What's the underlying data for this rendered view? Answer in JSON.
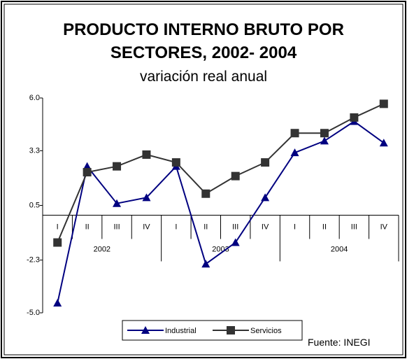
{
  "chart_data": {
    "type": "line",
    "title": "PRODUCTO INTERNO BRUTO POR SECTORES, 2002- 2004",
    "subtitle": "variación real anual",
    "source": "Fuente: INEGI",
    "categories": [
      "I",
      "II",
      "III",
      "IV",
      "I",
      "II",
      "III",
      "IV",
      "I",
      "II",
      "III",
      "IV"
    ],
    "category_groups": [
      "2002",
      "2003",
      "2004"
    ],
    "series": [
      {
        "name": "Industrial",
        "color": "#000080",
        "marker": "triangle",
        "values": [
          -4.5,
          2.5,
          0.6,
          0.9,
          2.5,
          -2.5,
          -1.4,
          0.9,
          3.2,
          3.8,
          4.8,
          3.7
        ]
      },
      {
        "name": "Servicios",
        "color": "#333333",
        "marker": "square",
        "values": [
          -1.4,
          2.2,
          2.5,
          3.1,
          2.7,
          1.1,
          2.0,
          2.7,
          4.2,
          4.2,
          5.0,
          5.7
        ]
      }
    ],
    "ylim": [
      -5,
      6
    ],
    "yticks": [
      {
        "value": 6,
        "label": "6.0"
      },
      3.3,
      0.5,
      -2.3,
      {
        "value": -5,
        "label": "-5.0"
      }
    ]
  }
}
